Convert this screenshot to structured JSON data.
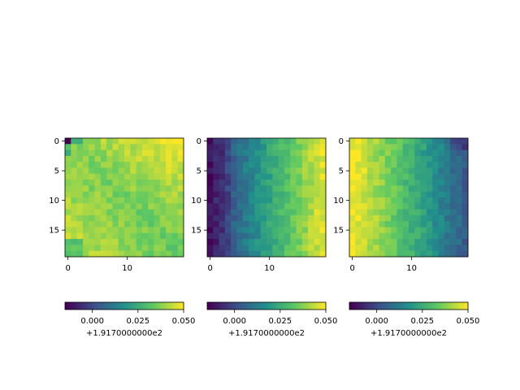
{
  "chart_data": [
    {
      "type": "heatmap",
      "title": "",
      "grid_size": [
        20,
        20
      ],
      "x_ticks": [
        "0",
        "10"
      ],
      "y_ticks": [
        "0",
        "5",
        "10",
        "15"
      ],
      "colormap": "viridis",
      "vmin": -0.015,
      "vmax": 0.05,
      "pattern": "high (~0.045) at top-right and lower-left, lower (~0.030) in middle, minimum (~-0.01) at top-left corner",
      "colorbar": {
        "ticks": [
          "0.000",
          "0.025",
          "0.050"
        ],
        "offset_label": "+1.9170000000e2",
        "min": -0.015,
        "max": 0.05
      }
    },
    {
      "type": "heatmap",
      "title": "",
      "grid_size": [
        20,
        20
      ],
      "x_ticks": [
        "0",
        "10"
      ],
      "y_ticks": [
        "0",
        "5",
        "10",
        "15"
      ],
      "colormap": "viridis",
      "vmin": -0.015,
      "vmax": 0.05,
      "pattern": "low (~-0.005) along left columns, rising to high (~0.045) on right columns",
      "colorbar": {
        "ticks": [
          "0.000",
          "0.025",
          "0.050"
        ],
        "offset_label": "+1.9170000000e2",
        "min": -0.015,
        "max": 0.05
      }
    },
    {
      "type": "heatmap",
      "title": "",
      "grid_size": [
        20,
        20
      ],
      "x_ticks": [
        "0",
        "10"
      ],
      "y_ticks": [
        "0",
        "5",
        "10",
        "15"
      ],
      "colormap": "viridis",
      "vmin": -0.015,
      "vmax": 0.05,
      "pattern": "high (~0.048) along left columns, falling to low (~0.005) on right columns, minimum at top-right corner",
      "colorbar": {
        "ticks": [
          "0.000",
          "0.025",
          "0.050"
        ],
        "offset_label": "+1.9170000000e2",
        "min": -0.015,
        "max": 0.05
      }
    }
  ]
}
